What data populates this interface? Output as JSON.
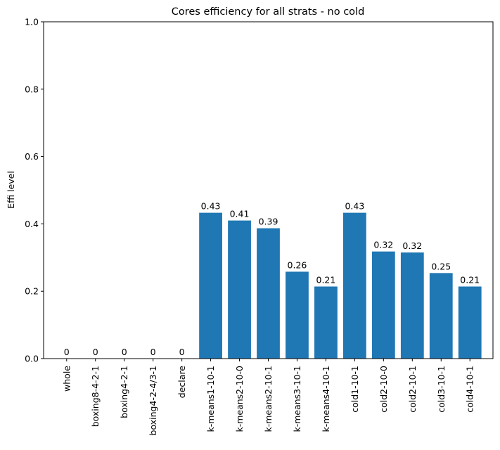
{
  "chart_data": {
    "type": "bar",
    "title": "Cores efficiency for all strats - no cold",
    "xlabel": "",
    "ylabel": "Effi level",
    "ylim": [
      0,
      1.0
    ],
    "yticks": [
      "0.0",
      "0.2",
      "0.4",
      "0.6",
      "0.8",
      "1.0"
    ],
    "grid": false,
    "bar_color": "#1f77b4",
    "categories": [
      "whole",
      "boxing8-4-2-1",
      "boxing4-2-1",
      "boxing4-2-4/3-1",
      "declare",
      "k-means1-10-1",
      "k-means2-10-0",
      "k-means2-10-1",
      "k-means3-10-1",
      "k-means4-10-1",
      "cold1-10-1",
      "cold2-10-0",
      "cold2-10-1",
      "cold3-10-1",
      "cold4-10-1"
    ],
    "values": [
      0,
      0,
      0,
      0,
      0,
      0.433,
      0.41,
      0.387,
      0.258,
      0.214,
      0.433,
      0.318,
      0.315,
      0.254,
      0.214
    ],
    "data_labels": [
      "0",
      "0",
      "0",
      "0",
      "0",
      "0.43",
      "0.41",
      "0.39",
      "0.26",
      "0.21",
      "0.43",
      "0.32",
      "0.32",
      "0.25",
      "0.21"
    ]
  }
}
